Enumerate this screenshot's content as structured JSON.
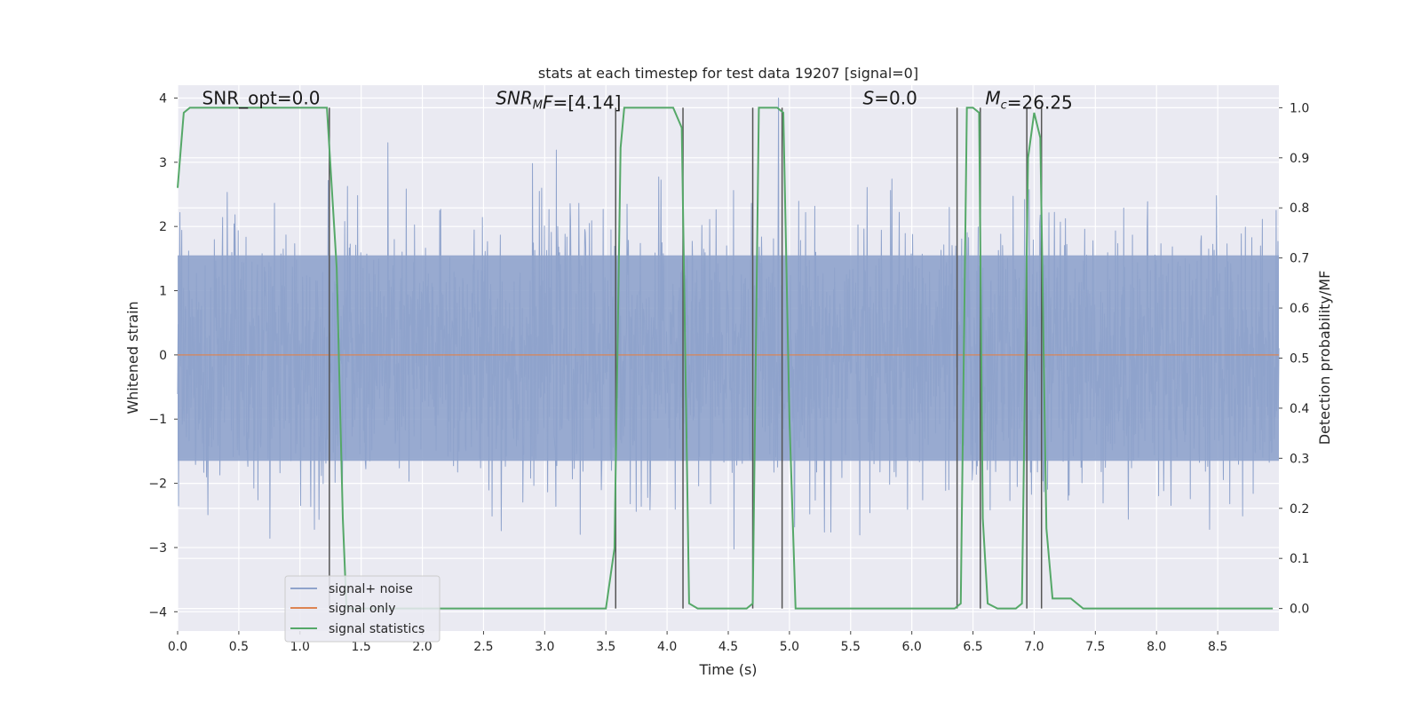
{
  "chart_data": {
    "type": "line",
    "title": "stats at each timestep for test data 19207 [signal=0]",
    "xlabel": "Time (s)",
    "ylabel_left": "Whitened strain",
    "ylabel_right": "Detection probability/MF",
    "xlim": [
      0.0,
      9.0
    ],
    "ylim_left": [
      -4.3,
      4.2
    ],
    "ylim_right": [
      -0.045,
      1.045
    ],
    "x_ticks": [
      0.0,
      0.5,
      1.0,
      1.5,
      2.0,
      2.5,
      3.0,
      3.5,
      4.0,
      4.5,
      5.0,
      5.5,
      6.0,
      6.5,
      7.0,
      7.5,
      8.0,
      8.5
    ],
    "x_tick_labels": [
      "0.0",
      "0.5",
      "1.0",
      "1.5",
      "2.0",
      "2.5",
      "3.0",
      "3.5",
      "4.0",
      "4.5",
      "5.0",
      "5.5",
      "6.0",
      "6.5",
      "7.0",
      "7.5",
      "8.0",
      "8.5"
    ],
    "y_left_ticks": [
      4,
      3,
      2,
      1,
      0,
      -1,
      -2,
      -3,
      -4
    ],
    "y_left_tick_labels": [
      "4",
      "3",
      "2",
      "1",
      "0",
      "−1",
      "−2",
      "−3",
      "−4"
    ],
    "y_right_ticks": [
      1.0,
      0.9,
      0.8,
      0.7,
      0.6,
      0.5,
      0.4,
      0.3,
      0.2,
      0.1,
      0.0
    ],
    "y_right_tick_labels": [
      "1.0",
      "0.9",
      "0.8",
      "0.7",
      "0.6",
      "0.5",
      "0.4",
      "0.3",
      "0.2",
      "0.1",
      "0.0"
    ],
    "grid": true,
    "legend_position": "lower-left",
    "annotations": [
      {
        "prefix": "SNR_opt",
        "sub": "",
        "value": "=0.0",
        "x": 0.2,
        "italic": false
      },
      {
        "prefix": "SNR",
        "sub": "M",
        "suffix": "F",
        "value": "=[4.14]",
        "x": 2.6,
        "italic": true
      },
      {
        "prefix": "S",
        "sub": "",
        "value": "=0.0",
        "x": 5.6,
        "italic": true
      },
      {
        "prefix": "M",
        "sub": "c",
        "value": "=26.25",
        "x": 6.6,
        "italic": true
      }
    ],
    "annotation_y": 4.0,
    "series": [
      {
        "name": "signal+ noise",
        "color": "#8fa3cc",
        "axis": "left",
        "noise_amplitude": 1.0
      },
      {
        "name": "signal only",
        "color": "#dd8452",
        "axis": "left",
        "value": 0.0
      },
      {
        "name": "signal statistics",
        "color": "#55a868",
        "axis": "right",
        "x": [
          0.0,
          0.05,
          0.1,
          1.22,
          1.25,
          1.3,
          1.35,
          1.38,
          1.5,
          3.5,
          3.57,
          3.62,
          3.65,
          4.05,
          4.12,
          4.18,
          4.25,
          4.65,
          4.7,
          4.75,
          4.9,
          4.95,
          5.0,
          5.05,
          6.35,
          6.4,
          6.45,
          6.5,
          6.55,
          6.58,
          6.62,
          6.7,
          6.85,
          6.9,
          6.95,
          7.0,
          7.05,
          7.1,
          7.15,
          7.3,
          7.35,
          7.4,
          7.5,
          8.95
        ],
        "y": [
          0.84,
          0.99,
          1.0,
          1.0,
          0.88,
          0.68,
          0.18,
          0.0,
          0.0,
          0.0,
          0.12,
          0.92,
          1.0,
          1.0,
          0.96,
          0.01,
          0.0,
          0.0,
          0.01,
          1.0,
          1.0,
          0.99,
          0.38,
          0.0,
          0.0,
          0.01,
          1.0,
          1.0,
          0.99,
          0.18,
          0.01,
          0.0,
          0.0,
          0.01,
          0.9,
          0.99,
          0.94,
          0.16,
          0.02,
          0.02,
          0.01,
          0.0,
          0.0,
          0.0
        ]
      }
    ],
    "vertical_markers": [
      1.24,
      3.58,
      4.13,
      4.7,
      4.94,
      6.37,
      6.56,
      6.94,
      7.06
    ]
  }
}
